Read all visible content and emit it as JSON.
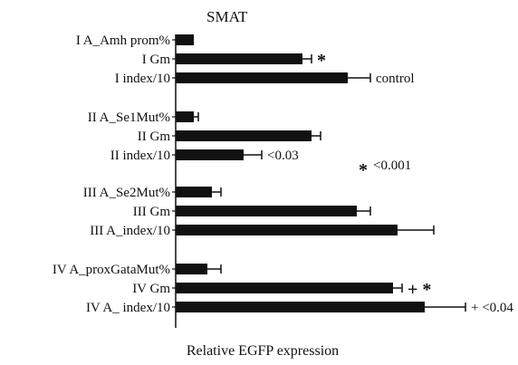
{
  "chart_data": {
    "type": "bar",
    "orientation": "horizontal",
    "title": "SMAT",
    "xlabel": "Relative EGFP expression",
    "ylabel": "",
    "xlim": [
      0,
      0.68
    ],
    "grid": false,
    "colors": {
      "bar": "#111111",
      "axis": "#111111"
    },
    "groups": [
      {
        "name": "I",
        "bars": [
          {
            "label": "I A_Amh prom%",
            "value": 0.04,
            "error": 0.0
          },
          {
            "label": "I Gm",
            "value": 0.28,
            "error": 0.02,
            "mark": "*"
          },
          {
            "label": "I index/10",
            "value": 0.38,
            "error": 0.05,
            "note": "control"
          }
        ]
      },
      {
        "name": "II",
        "bars": [
          {
            "label": "II A_Se1Mut%",
            "value": 0.04,
            "error": 0.01
          },
          {
            "label": "II Gm",
            "value": 0.3,
            "error": 0.02
          },
          {
            "label": "II index/10",
            "value": 0.15,
            "error": 0.04,
            "note": "<0.03"
          }
        ]
      },
      {
        "name": "III",
        "bars": [
          {
            "label": "III A_Se2Mut%",
            "value": 0.08,
            "error": 0.02
          },
          {
            "label": "III Gm",
            "value": 0.4,
            "error": 0.03
          },
          {
            "label": "III A_index/10",
            "value": 0.49,
            "error": 0.08
          }
        ]
      },
      {
        "name": "IV",
        "bars": [
          {
            "label": "IV A_proxGataMut%",
            "value": 0.07,
            "error": 0.03
          },
          {
            "label": "IV Gm",
            "value": 0.48,
            "error": 0.02,
            "mark": "+ *"
          },
          {
            "label": "IV A_ index/10",
            "value": 0.55,
            "error": 0.09,
            "note": "+ <0.04"
          }
        ]
      }
    ],
    "annotations": [
      {
        "symbol": "*",
        "text": "<0.001"
      }
    ]
  }
}
